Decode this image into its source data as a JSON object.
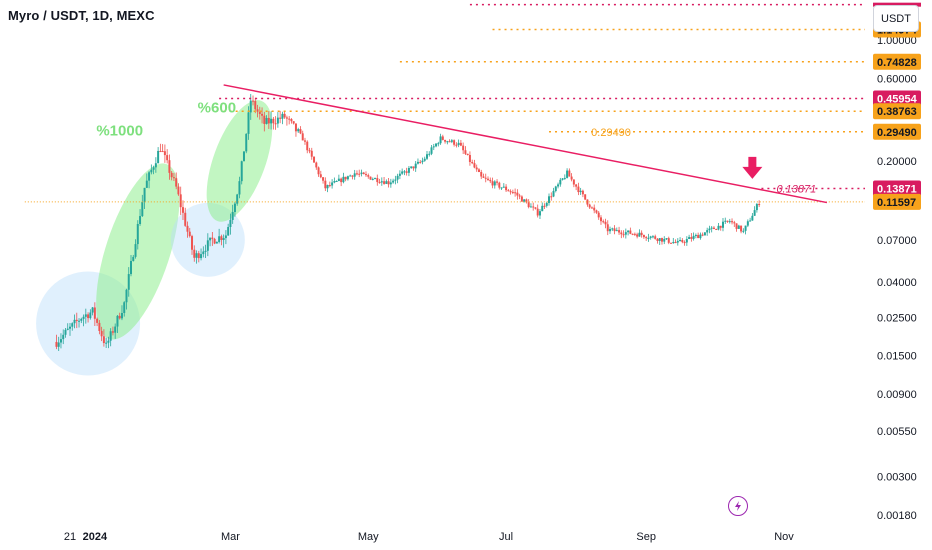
{
  "header": {
    "title": "Myro / USDT, 1D, MEXC",
    "currency_button": "USDT"
  },
  "colors": {
    "up": "#26a69a",
    "down": "#ef5350",
    "trendline": "#e91e63",
    "fib": "#f7a21b",
    "red_dots": "#d81b60",
    "green_zone": "#90ee90",
    "blue_zone": "#bbdefb",
    "annotation": "#7ee07e",
    "current_price": "#f7a21b"
  },
  "chart_data": {
    "type": "candlestick",
    "title": "Myro / USDT, 1D, MEXC",
    "y_scale": "log",
    "ylim": [
      0.0015,
      2.1
    ],
    "x_ticks": [
      {
        "label": "21",
        "date": "2023-12-21"
      },
      {
        "label": "2024",
        "date": "2024-01-01"
      },
      {
        "label": "Mar",
        "date": "2024-03-01"
      },
      {
        "label": "May",
        "date": "2024-05-01"
      },
      {
        "label": "Jul",
        "date": "2024-07-01"
      },
      {
        "label": "Sep",
        "date": "2024-09-01"
      },
      {
        "label": "Nov",
        "date": "2024-11-01"
      }
    ],
    "y_ticks": [
      "1.00000",
      "0.60000",
      "0.20000",
      "0.07000",
      "0.04000",
      "0.02500",
      "0.01500",
      "0.00900",
      "0.00550",
      "0.00300",
      "0.00180"
    ],
    "y_tick_values": [
      1.0,
      0.6,
      0.2,
      0.07,
      0.04,
      0.025,
      0.015,
      0.009,
      0.0055,
      0.003,
      0.0018
    ],
    "price_path": [
      {
        "date": "2023-12-15",
        "price": 0.018
      },
      {
        "date": "2023-12-26",
        "price": 0.025
      },
      {
        "date": "2023-12-31",
        "price": 0.027
      },
      {
        "date": "2024-01-06",
        "price": 0.017
      },
      {
        "date": "2024-01-14",
        "price": 0.03
      },
      {
        "date": "2024-01-23",
        "price": 0.14
      },
      {
        "date": "2024-01-30",
        "price": 0.24
      },
      {
        "date": "2024-02-06",
        "price": 0.14
      },
      {
        "date": "2024-02-14",
        "price": 0.055
      },
      {
        "date": "2024-02-22",
        "price": 0.07
      },
      {
        "date": "2024-02-28",
        "price": 0.075
      },
      {
        "date": "2024-03-05",
        "price": 0.15
      },
      {
        "date": "2024-03-10",
        "price": 0.45
      },
      {
        "date": "2024-03-16",
        "price": 0.33
      },
      {
        "date": "2024-03-25",
        "price": 0.36
      },
      {
        "date": "2024-04-02",
        "price": 0.27
      },
      {
        "date": "2024-04-12",
        "price": 0.14
      },
      {
        "date": "2024-04-25",
        "price": 0.17
      },
      {
        "date": "2024-05-10",
        "price": 0.15
      },
      {
        "date": "2024-05-25",
        "price": 0.2
      },
      {
        "date": "2024-06-02",
        "price": 0.27
      },
      {
        "date": "2024-06-10",
        "price": 0.25
      },
      {
        "date": "2024-06-20",
        "price": 0.16
      },
      {
        "date": "2024-07-05",
        "price": 0.13
      },
      {
        "date": "2024-07-15",
        "price": 0.1
      },
      {
        "date": "2024-07-28",
        "price": 0.17
      },
      {
        "date": "2024-08-05",
        "price": 0.12
      },
      {
        "date": "2024-08-15",
        "price": 0.08
      },
      {
        "date": "2024-08-30",
        "price": 0.075
      },
      {
        "date": "2024-09-15",
        "price": 0.067
      },
      {
        "date": "2024-09-25",
        "price": 0.075
      },
      {
        "date": "2024-10-08",
        "price": 0.09
      },
      {
        "date": "2024-10-14",
        "price": 0.078
      },
      {
        "date": "2024-10-21",
        "price": 0.11597
      }
    ],
    "trendline": {
      "start": {
        "date": "2024-02-27",
        "price": 0.55
      },
      "end": {
        "date": "2024-11-20",
        "price": 0.115
      }
    },
    "zones": [
      {
        "kind": "circle",
        "center": {
          "date": "2023-12-29",
          "price": 0.023
        },
        "color": "blue"
      },
      {
        "kind": "ellipse",
        "center": {
          "date": "2024-01-20",
          "price": 0.06
        },
        "color": "green"
      },
      {
        "kind": "circle",
        "center": {
          "date": "2024-02-20",
          "price": 0.07
        },
        "color": "blue"
      },
      {
        "kind": "ellipse",
        "center": {
          "date": "2024-03-05",
          "price": 0.2
        },
        "color": "green"
      }
    ],
    "annotations": [
      {
        "text": "%1000",
        "date": "2024-01-12",
        "price": 0.28
      },
      {
        "text": "%600",
        "date": "2024-02-24",
        "price": 0.38
      },
      {
        "text": "0.29490",
        "date": "2024-08-05",
        "price": 0.2949
      },
      {
        "text": "0.13871",
        "date": "2024-10-26",
        "price": 0.13871
      }
    ],
    "arrow": {
      "date": "2024-10-18",
      "price": 0.185
    },
    "horizontal_levels": [
      {
        "price": 1.6,
        "start": "2024-06-15",
        "style": "red-dotted"
      },
      {
        "price": 1.14974,
        "start": "2024-06-25",
        "style": "fib-dotted",
        "label": "1.14974"
      },
      {
        "price": 0.74828,
        "start": "2024-05-15",
        "style": "fib-dotted",
        "label": "0.74828"
      },
      {
        "price": 0.45954,
        "start": "2024-02-25",
        "style": "red-dotted",
        "label": "0.45954"
      },
      {
        "price": 0.38763,
        "start": "2024-02-27",
        "style": "fib-dotted",
        "label": "0.38763"
      },
      {
        "price": 0.2949,
        "start": "2024-07-20",
        "style": "fib-dotted",
        "label": "0.29490"
      },
      {
        "price": 0.13871,
        "start": "2024-10-22",
        "style": "red-dotted",
        "label": "0.13871"
      },
      {
        "price": 0.11597,
        "start": "2023-12-01",
        "style": "current",
        "label": "0.11597"
      }
    ]
  }
}
